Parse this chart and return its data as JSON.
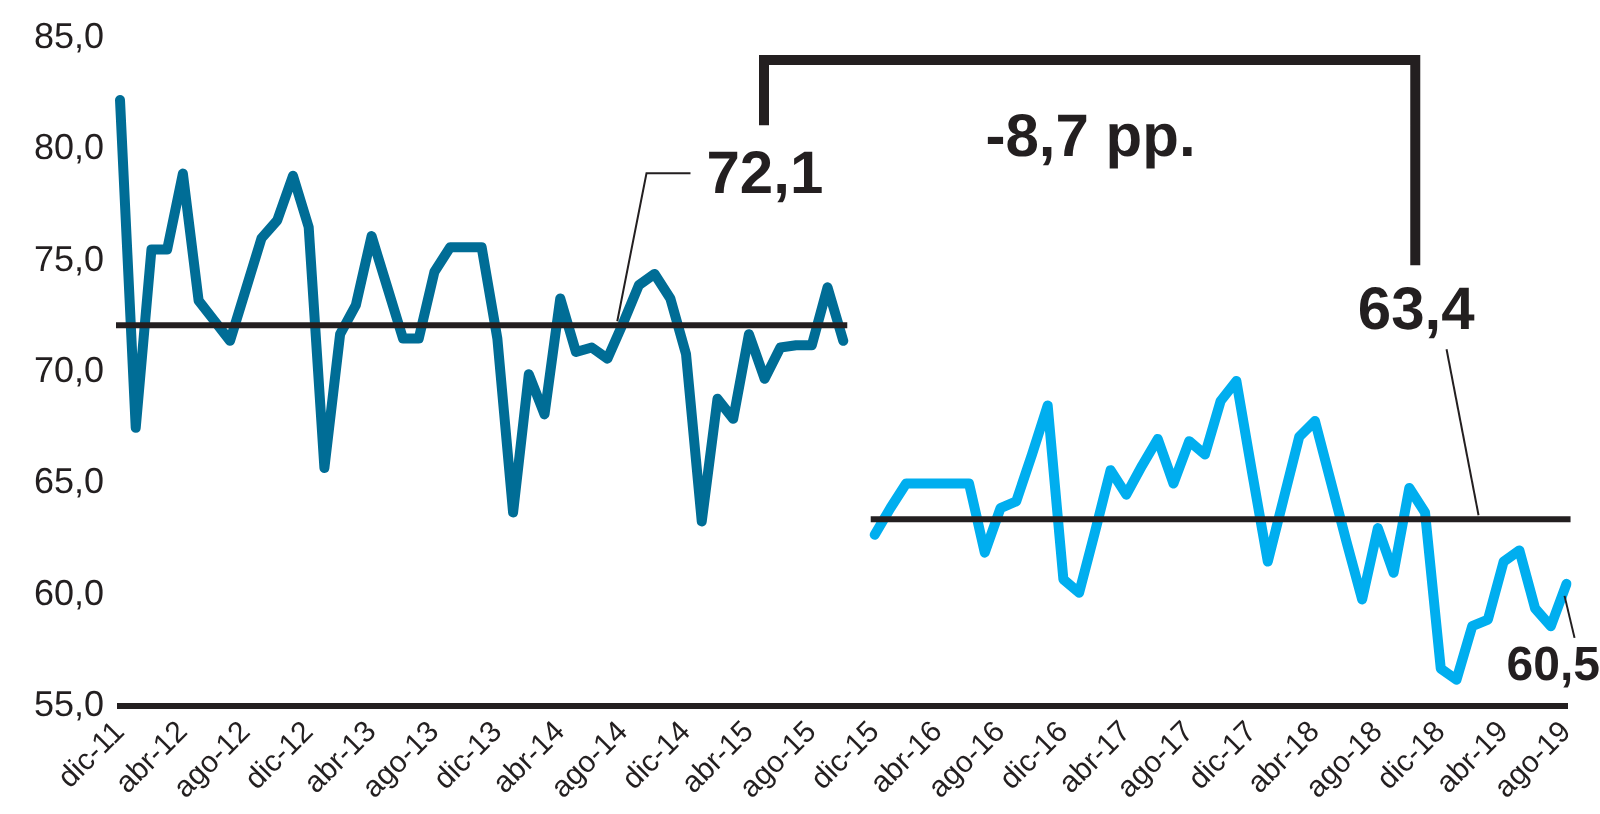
{
  "chart_data": {
    "type": "line",
    "categories": [
      "dic-11",
      null,
      null,
      null,
      "abr-12",
      null,
      null,
      null,
      "ago-12",
      null,
      null,
      null,
      "dic-12",
      null,
      null,
      null,
      "abr-13",
      null,
      null,
      null,
      "ago-13",
      null,
      null,
      null,
      "dic-13",
      null,
      null,
      null,
      "abr-14",
      null,
      null,
      null,
      "ago-14",
      null,
      null,
      null,
      "dic-14",
      null,
      null,
      null,
      "abr-15",
      null,
      null,
      null,
      "ago-15",
      null,
      null,
      null,
      "dic-15",
      null,
      null,
      null,
      "abr-16",
      null,
      null,
      null,
      "ago-16",
      null,
      null,
      null,
      "dic-16",
      null,
      null,
      null,
      "abr-17",
      null,
      null,
      null,
      "ago-17",
      null,
      null,
      null,
      "dic-17",
      null,
      null,
      null,
      "abr-18",
      null,
      null,
      null,
      "ago-18",
      null,
      null,
      null,
      "dic-18",
      null,
      null,
      null,
      "abr-19",
      null,
      null,
      null,
      "ago-19"
    ],
    "series": [
      {
        "color": "#006d96",
        "values": [
          82.2,
          67.5,
          75.5,
          75.5,
          78.9,
          73.2,
          72.3,
          71.4,
          73.7,
          76.0,
          76.8,
          78.8,
          76.5,
          65.7,
          71.7,
          73.0,
          76.1,
          73.8,
          71.5,
          71.5,
          74.5,
          75.6,
          75.6,
          75.6,
          71.5,
          63.7,
          69.9,
          68.1,
          73.3,
          70.9,
          71.1,
          70.6,
          72.2,
          73.9,
          74.4,
          73.3,
          70.8,
          63.3,
          68.8,
          67.9,
          71.7,
          69.7,
          71.1,
          71.2,
          71.2,
          73.8,
          71.4,
          null,
          null,
          null,
          null,
          null,
          null,
          null,
          null,
          null,
          null,
          null,
          null,
          null,
          null,
          null,
          null,
          null,
          null,
          null,
          null,
          null,
          null,
          null,
          null,
          null,
          null,
          null,
          null,
          null,
          null,
          null,
          null,
          null,
          null,
          null,
          null,
          null,
          null,
          null,
          null,
          null,
          null,
          null,
          null,
          null,
          null
        ]
      },
      {
        "color": "#00aeef",
        "values": [
          null,
          null,
          null,
          null,
          null,
          null,
          null,
          null,
          null,
          null,
          null,
          null,
          null,
          null,
          null,
          null,
          null,
          null,
          null,
          null,
          null,
          null,
          null,
          null,
          null,
          null,
          null,
          null,
          null,
          null,
          null,
          null,
          null,
          null,
          null,
          null,
          null,
          null,
          null,
          null,
          null,
          null,
          null,
          null,
          null,
          null,
          null,
          null,
          62.7,
          63.9,
          65.0,
          65.0,
          65.0,
          65.0,
          65.0,
          61.9,
          63.9,
          64.2,
          66.3,
          68.5,
          60.7,
          60.1,
          62.8,
          65.6,
          64.5,
          65.8,
          67.0,
          65.0,
          66.9,
          66.3,
          68.7,
          69.6,
          65.5,
          61.5,
          64.3,
          67.1,
          67.8,
          65.1,
          62.4,
          59.8,
          63.0,
          61.0,
          64.8,
          63.7,
          56.7,
          56.2,
          58.6,
          58.9,
          61.5,
          62.0,
          59.4,
          58.6,
          60.5
        ],
        "value_labels": [
          null,
          null,
          null,
          null,
          null,
          null,
          null,
          null,
          null,
          null,
          null,
          null,
          null,
          null,
          null,
          null,
          null,
          null,
          null,
          null,
          null,
          null,
          null,
          null,
          null,
          null,
          null,
          null,
          null,
          null,
          null,
          null,
          null,
          null,
          null,
          null,
          null,
          null,
          null,
          null,
          null,
          null,
          null,
          null,
          null,
          null,
          null,
          null,
          null,
          null,
          null,
          null,
          null,
          null,
          null,
          null,
          null,
          null,
          null,
          null,
          null,
          null,
          null,
          null,
          null,
          null,
          null,
          null,
          null,
          null,
          null,
          null,
          null,
          null,
          null,
          null,
          null,
          null,
          null,
          null,
          null,
          null,
          null,
          null,
          null,
          null,
          null,
          null,
          null,
          null,
          null,
          null,
          "60,5"
        ]
      }
    ],
    "ylim": [
      55,
      85
    ],
    "yticks": [
      {
        "value": 55,
        "label": "55,0"
      },
      {
        "value": 60,
        "label": "60,0"
      },
      {
        "value": 65,
        "label": "65,0"
      },
      {
        "value": 70,
        "label": "70,0"
      },
      {
        "value": 75,
        "label": "75,0"
      },
      {
        "value": 80,
        "label": "80,0"
      },
      {
        "value": 85,
        "label": "85,0"
      }
    ],
    "ref_lines": [
      {
        "axis": "y",
        "value": 72.1,
        "label": "72,1",
        "color": "#231f20"
      },
      {
        "axis": "y",
        "value": 63.4,
        "label": "63,4",
        "color": "#231f20"
      }
    ],
    "annotations": [
      "-8,7 pp."
    ],
    "grid": false,
    "legend": false,
    "marker": "none",
    "line_style": "solid"
  }
}
